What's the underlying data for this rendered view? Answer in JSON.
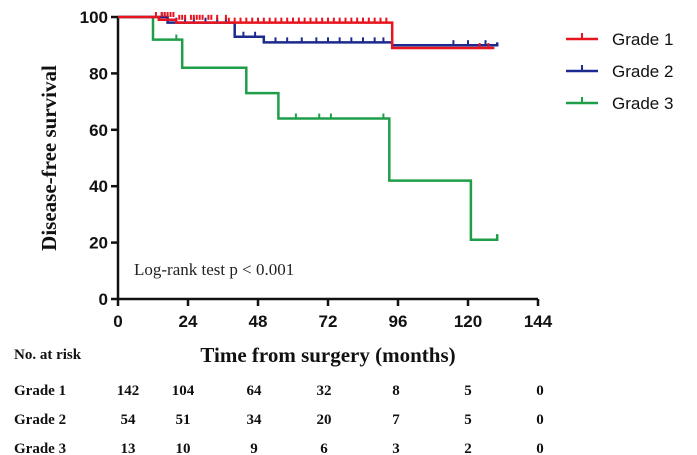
{
  "chart_data": {
    "type": "line",
    "title": "",
    "xlabel": "Time from surgery (months)",
    "ylabel": "Disease-free survival",
    "xlim": [
      0,
      144
    ],
    "ylim": [
      0,
      100
    ],
    "xticks": [
      "0",
      "24",
      "48",
      "72",
      "96",
      "120",
      "144"
    ],
    "yticks": [
      "0",
      "20",
      "40",
      "60",
      "80",
      "100"
    ],
    "grid": false,
    "legend_position": "top-right",
    "annotation": "Log-rank test p < 0.001",
    "series": [
      {
        "name": "Grade 1",
        "color": "#e8141e",
        "steps": [
          [
            0,
            100
          ],
          [
            14,
            100
          ],
          [
            14,
            99
          ],
          [
            20,
            99
          ],
          [
            20,
            98
          ],
          [
            94,
            98
          ],
          [
            94,
            89
          ],
          [
            129,
            89
          ]
        ],
        "censored": [
          [
            13,
            100
          ],
          [
            15,
            100
          ],
          [
            16,
            100
          ],
          [
            17,
            100
          ],
          [
            18,
            100
          ],
          [
            19,
            100
          ],
          [
            21,
            99
          ],
          [
            22,
            99
          ],
          [
            23,
            99
          ],
          [
            25,
            99
          ],
          [
            26,
            99
          ],
          [
            27,
            99
          ],
          [
            28,
            99
          ],
          [
            29,
            99
          ],
          [
            31,
            99
          ],
          [
            32,
            99
          ],
          [
            34,
            99
          ],
          [
            37,
            99
          ],
          [
            38,
            98
          ],
          [
            40,
            98
          ],
          [
            42,
            98
          ],
          [
            44,
            98
          ],
          [
            46,
            98
          ],
          [
            48,
            98
          ],
          [
            50,
            98
          ],
          [
            52,
            98
          ],
          [
            54,
            98
          ],
          [
            56,
            98
          ],
          [
            58,
            98
          ],
          [
            60,
            98
          ],
          [
            62,
            98
          ],
          [
            64,
            98
          ],
          [
            66,
            98
          ],
          [
            68,
            98
          ],
          [
            70,
            98
          ],
          [
            72,
            98
          ],
          [
            74,
            98
          ],
          [
            76,
            98
          ],
          [
            78,
            98
          ],
          [
            80,
            98
          ],
          [
            82,
            98
          ],
          [
            84,
            98
          ],
          [
            86,
            98
          ],
          [
            88,
            98
          ],
          [
            90,
            98
          ],
          [
            92,
            98
          ],
          [
            124,
            89
          ],
          [
            127,
            89
          ]
        ]
      },
      {
        "name": "Grade 2",
        "color": "#1c2a8f",
        "steps": [
          [
            0,
            100
          ],
          [
            17,
            100
          ],
          [
            17,
            98
          ],
          [
            40,
            98
          ],
          [
            40,
            93
          ],
          [
            50,
            93
          ],
          [
            50,
            91
          ],
          [
            94,
            91
          ],
          [
            94,
            90
          ],
          [
            130,
            90
          ],
          [
            130,
            91
          ]
        ],
        "censored": [
          [
            15,
            100
          ],
          [
            16,
            100
          ],
          [
            20,
            98
          ],
          [
            23,
            98
          ],
          [
            26,
            98
          ],
          [
            30,
            98
          ],
          [
            34,
            98
          ],
          [
            37,
            98
          ],
          [
            43,
            93
          ],
          [
            47,
            93
          ],
          [
            54,
            91
          ],
          [
            58,
            91
          ],
          [
            63,
            91
          ],
          [
            68,
            91
          ],
          [
            72,
            91
          ],
          [
            76,
            91
          ],
          [
            80,
            91
          ],
          [
            84,
            91
          ],
          [
            88,
            91
          ],
          [
            91,
            91
          ],
          [
            115,
            90
          ],
          [
            120,
            90
          ],
          [
            126,
            90
          ]
        ]
      },
      {
        "name": "Grade 3",
        "color": "#1f9e4a",
        "steps": [
          [
            0,
            100
          ],
          [
            12,
            100
          ],
          [
            12,
            92
          ],
          [
            22,
            92
          ],
          [
            22,
            82
          ],
          [
            44,
            82
          ],
          [
            44,
            73
          ],
          [
            55,
            73
          ],
          [
            55,
            64
          ],
          [
            93,
            64
          ],
          [
            93,
            42
          ],
          [
            121,
            42
          ],
          [
            121,
            21
          ],
          [
            130,
            21
          ],
          [
            130,
            23
          ]
        ],
        "censored": [
          [
            20,
            92
          ],
          [
            61,
            64
          ],
          [
            69,
            64
          ],
          [
            73,
            64
          ],
          [
            91,
            64
          ]
        ]
      }
    ]
  },
  "risk_table": {
    "header": "No. at risk",
    "rows": [
      {
        "label": "Grade 1",
        "values": [
          "142",
          "104",
          "64",
          "32",
          "8",
          "5",
          "0"
        ]
      },
      {
        "label": "Grade 2",
        "values": [
          "54",
          "51",
          "34",
          "20",
          "7",
          "5",
          "0"
        ]
      },
      {
        "label": "Grade 3",
        "values": [
          "13",
          "10",
          "9",
          "6",
          "3",
          "2",
          "0"
        ]
      }
    ]
  }
}
